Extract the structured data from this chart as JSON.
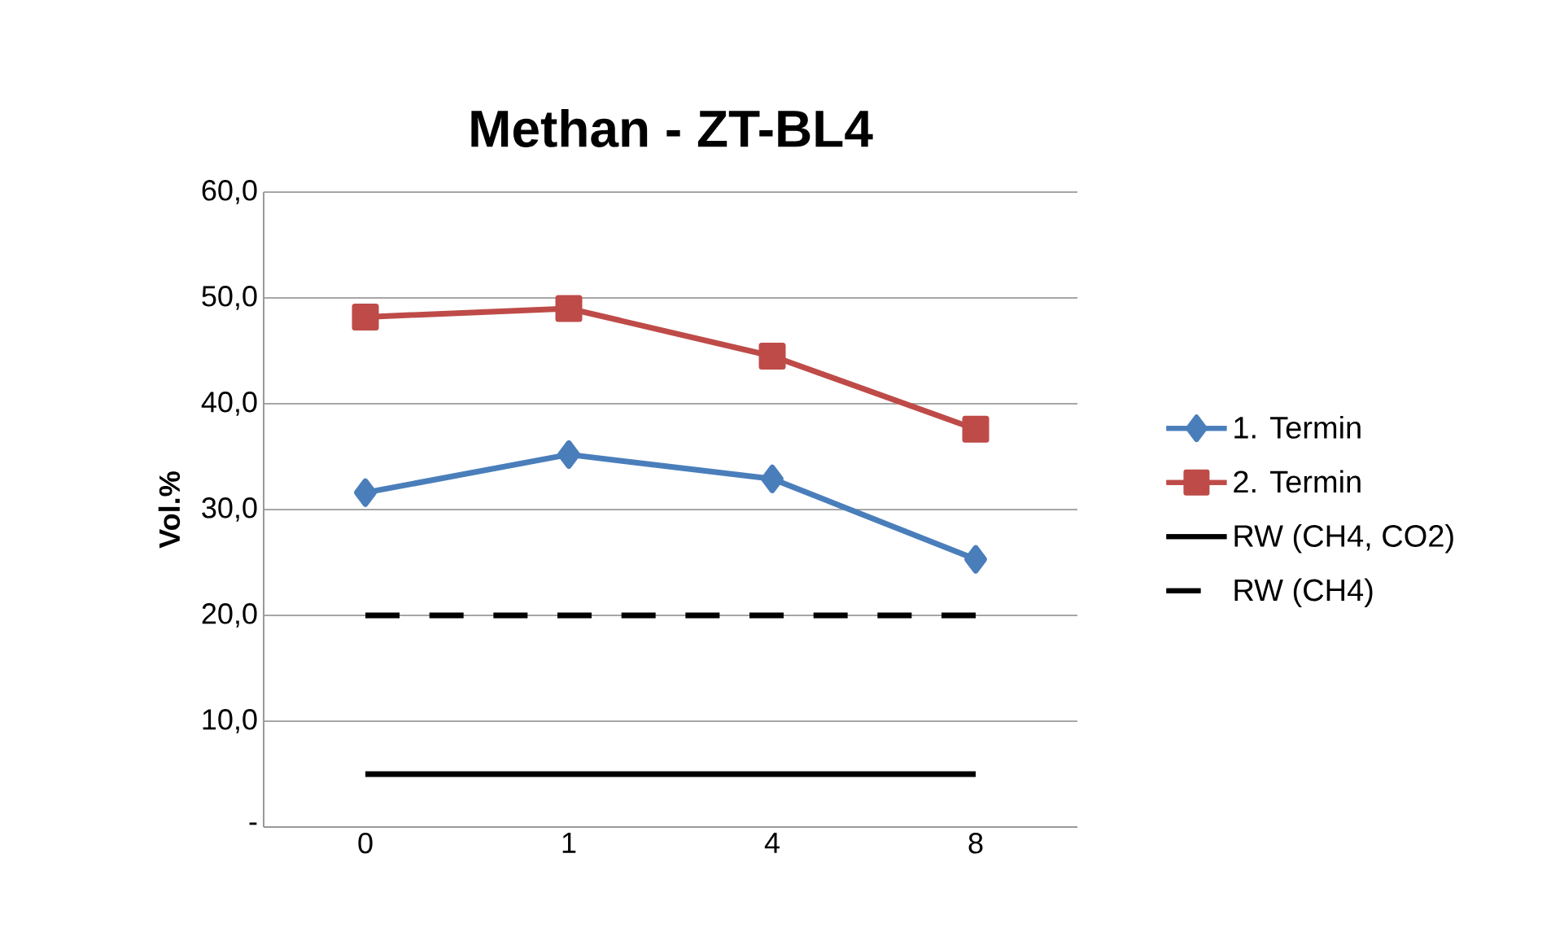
{
  "chart_data": {
    "type": "line",
    "title": "Methan - ZT-BL4",
    "ylabel": "Vol.%",
    "categories": [
      "0",
      "1",
      "4",
      "8"
    ],
    "series": [
      {
        "name": "1. Termin",
        "color": "#4a7ebb",
        "values": [
          31.6,
          35.2,
          32.9,
          25.3
        ],
        "marker": "diamond",
        "line_style": "solid"
      },
      {
        "name": "2. Termin",
        "color": "#be4b48",
        "values": [
          48.2,
          49.0,
          44.5,
          37.6
        ],
        "marker": "square",
        "line_style": "solid"
      },
      {
        "name": "RW (CH4, CO2)",
        "color": "#000000",
        "values": [
          5.0,
          5.0,
          5.0,
          5.0
        ],
        "marker": "none",
        "line_style": "solid"
      },
      {
        "name": "RW (CH4)",
        "color": "#000000",
        "values": [
          20.0,
          20.0,
          20.0,
          20.0
        ],
        "marker": "none",
        "line_style": "dashed"
      }
    ],
    "ylim": [
      0,
      60
    ],
    "yticks": [
      {
        "value": 0,
        "label": "-"
      },
      {
        "value": 10,
        "label": "10,0"
      },
      {
        "value": 20,
        "label": "20,0"
      },
      {
        "value": 30,
        "label": "30,0"
      },
      {
        "value": 40,
        "label": "40,0"
      },
      {
        "value": 50,
        "label": "50,0"
      },
      {
        "value": 60,
        "label": "60,0"
      }
    ],
    "grid": "y",
    "legend": "right"
  }
}
